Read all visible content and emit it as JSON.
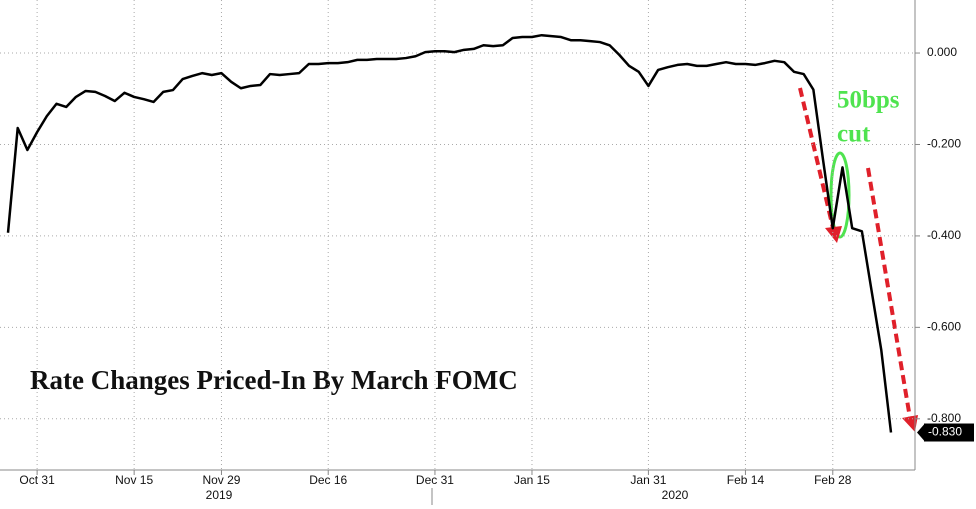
{
  "chart_data": {
    "type": "line",
    "title": "Rate Changes Priced-In By March FOMC",
    "annotation": [
      "50bps",
      "cut"
    ],
    "years": [
      "2019",
      "2020"
    ],
    "last_value_label": "-0.830",
    "color": "#000000",
    "grid": true,
    "categories": [
      null,
      null,
      null,
      "Oct 31",
      null,
      null,
      null,
      null,
      null,
      null,
      null,
      null,
      null,
      "Nov 15",
      null,
      null,
      null,
      null,
      null,
      null,
      null,
      null,
      "Nov 29",
      null,
      null,
      null,
      null,
      null,
      null,
      null,
      null,
      null,
      null,
      "Dec 16",
      null,
      null,
      null,
      null,
      null,
      null,
      null,
      null,
      null,
      null,
      "Dec 31",
      null,
      null,
      null,
      null,
      null,
      null,
      null,
      null,
      null,
      "Jan 15",
      null,
      null,
      null,
      null,
      null,
      null,
      null,
      null,
      null,
      null,
      null,
      "Jan 31",
      null,
      null,
      null,
      null,
      null,
      null,
      null,
      null,
      null,
      "Feb 14",
      null,
      null,
      null,
      null,
      null,
      null,
      null,
      null,
      "Feb 28",
      null,
      null,
      null,
      null,
      null,
      null
    ],
    "values": [
      -0.393,
      -0.164,
      -0.212,
      -0.173,
      -0.138,
      -0.111,
      -0.118,
      -0.096,
      -0.083,
      -0.085,
      -0.094,
      -0.105,
      -0.087,
      -0.096,
      -0.101,
      -0.107,
      -0.085,
      -0.081,
      -0.057,
      -0.05,
      -0.044,
      -0.048,
      -0.044,
      -0.063,
      -0.077,
      -0.072,
      -0.07,
      -0.046,
      -0.048,
      -0.046,
      -0.044,
      -0.024,
      -0.024,
      -0.022,
      -0.022,
      -0.02,
      -0.015,
      -0.015,
      -0.013,
      -0.013,
      -0.013,
      -0.011,
      -0.007,
      0.002,
      0.004,
      0.004,
      0.002,
      0.007,
      0.009,
      0.017,
      0.015,
      0.017,
      0.033,
      0.035,
      0.035,
      0.039,
      0.037,
      0.035,
      0.028,
      0.028,
      0.026,
      0.024,
      0.017,
      -0.004,
      -0.028,
      -0.041,
      -0.072,
      -0.037,
      -0.031,
      -0.026,
      -0.024,
      -0.028,
      -0.028,
      -0.024,
      -0.02,
      -0.024,
      -0.024,
      -0.026,
      -0.022,
      -0.017,
      -0.02,
      -0.041,
      -0.046,
      -0.08,
      -0.234,
      -0.383,
      -0.25,
      -0.383,
      -0.39,
      -0.52,
      -0.65,
      -0.83
    ],
    "ylim": [
      -0.912,
      0.116
    ],
    "yticks": [
      {
        "value": 0,
        "label": "0.000"
      },
      {
        "value": -0.2,
        "label": "-0.200"
      },
      {
        "value": -0.4,
        "label": "-0.400"
      },
      {
        "value": -0.6,
        "label": "-0.600"
      },
      {
        "value": -0.8,
        "label": "-0.800"
      }
    ]
  }
}
